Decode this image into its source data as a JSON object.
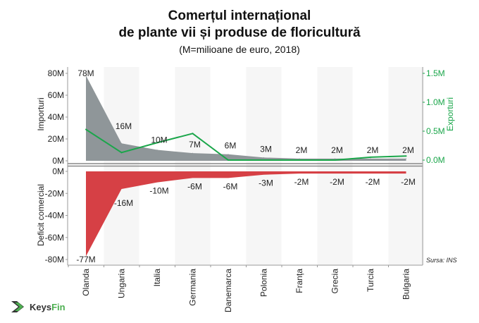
{
  "title_line1": "Comerțul internațional",
  "title_line2": "de plante vii și produse de floricultură",
  "subtitle": "(M=milioane de euro, 2018)",
  "source": "Sursa: INS",
  "logo": {
    "part1": "Keys",
    "part2": "Fin"
  },
  "colors": {
    "imports": "#8f9699",
    "deficit": "#d64045",
    "exports": "#1aa64a",
    "band": "#f6f6f6"
  },
  "chart_data": {
    "type": "area",
    "categories": [
      "Olanda",
      "Ungaria",
      "Italia",
      "Germania",
      "Danemarca",
      "Polonia",
      "Franța",
      "Grecia",
      "Turcia",
      "Bulgaria"
    ],
    "top_panel": {
      "left_axis": {
        "label": "Importuri",
        "ticks": [
          "0M",
          "20M",
          "40M",
          "60M",
          "80M"
        ],
        "range": [
          0,
          80
        ]
      },
      "right_axis": {
        "label": "Exporturi",
        "ticks": [
          "0.0M",
          "0.5M",
          "1.0M",
          "1.5M"
        ],
        "range": [
          0,
          1.5
        ]
      },
      "series": [
        {
          "name": "Importuri",
          "type": "area",
          "values": [
            78,
            16,
            10,
            7,
            6,
            3,
            2,
            2,
            2,
            2
          ],
          "labels": [
            "78M",
            "16M",
            "10M",
            "7M",
            "6M",
            "3M",
            "2M",
            "2M",
            "2M",
            "2M"
          ]
        },
        {
          "name": "Exporturi",
          "type": "line",
          "values": [
            0.53,
            0.13,
            0.3,
            0.46,
            0.0,
            0.0,
            0.0,
            0.0,
            0.05,
            0.07
          ]
        }
      ]
    },
    "bottom_panel": {
      "axis": {
        "label": "Deficit comercial",
        "ticks": [
          "0M",
          "-20M",
          "-40M",
          "-60M",
          "-80M"
        ],
        "range": [
          -80,
          0
        ]
      },
      "series": [
        {
          "name": "Deficit comercial",
          "type": "area",
          "values": [
            -77,
            -16,
            -10,
            -6,
            -6,
            -3,
            -2,
            -2,
            -2,
            -2
          ],
          "labels": [
            "-77M",
            "-16M",
            "-10M",
            "-6M",
            "-6M",
            "-3M",
            "-2M",
            "-2M",
            "-2M",
            "-2M"
          ]
        }
      ]
    }
  }
}
